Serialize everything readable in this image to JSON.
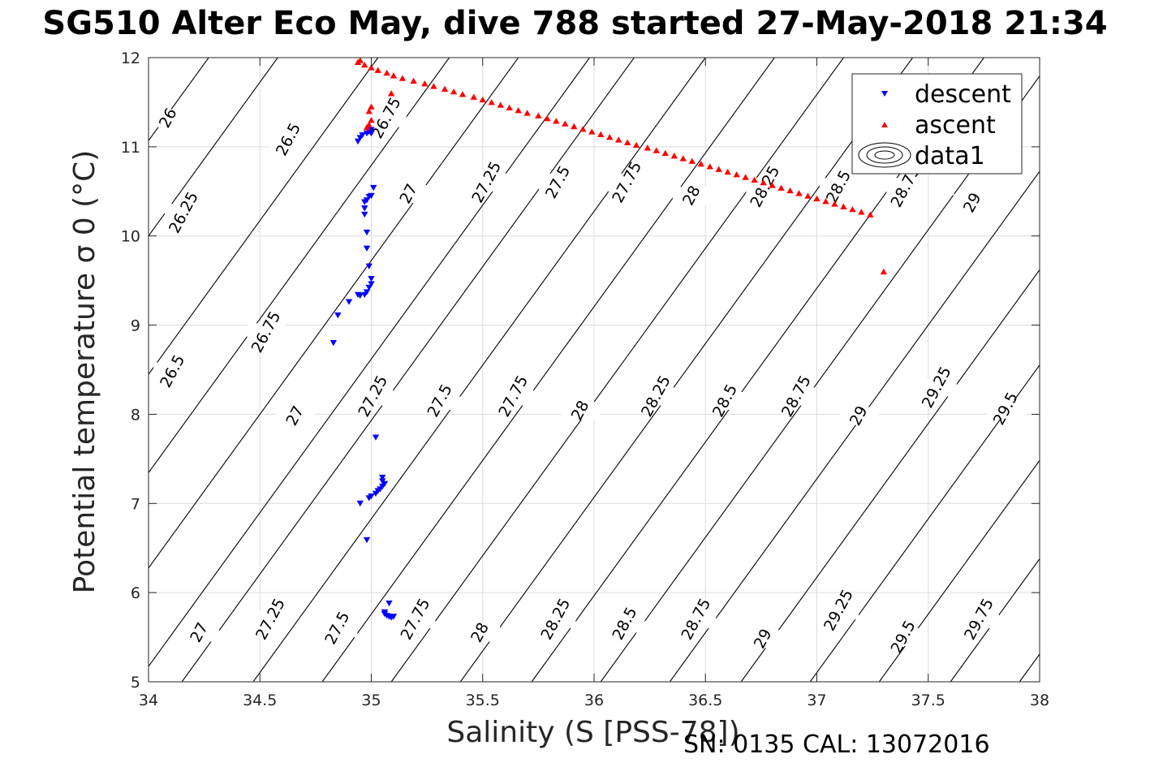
{
  "chart_data": {
    "type": "scatter",
    "title": "SG510 Alter Eco May, dive 788 started 27-May-2018 21:34",
    "xlabel": "Salinity (S [PSS-78])",
    "ylabel": "Potential temperature σ 0 (°C)",
    "xlim": [
      34,
      38
    ],
    "ylim": [
      5,
      12
    ],
    "xticks": [
      "34",
      "34.5",
      "35",
      "35.5",
      "36",
      "36.5",
      "37",
      "37.5",
      "38"
    ],
    "yticks": [
      "5",
      "6",
      "7",
      "8",
      "9",
      "10",
      "11",
      "12"
    ],
    "grid": true,
    "legend_position": "top-right",
    "series": [
      {
        "name": "descent",
        "marker": "triangle-down",
        "color": "#0000ff",
        "x": [
          34.94,
          34.95,
          34.96,
          34.98,
          34.99,
          35.0,
          35.0,
          34.97,
          34.98,
          34.99,
          35.0,
          35.01,
          34.97,
          34.97,
          34.98,
          34.98,
          34.99,
          35.0,
          35.0,
          34.99,
          34.98,
          34.97,
          34.95,
          34.94,
          34.9,
          34.85,
          34.83,
          35.02,
          35.05,
          35.05,
          35.06,
          35.05,
          35.04,
          35.03,
          35.02,
          35.0,
          34.99,
          34.95,
          34.98,
          35.08,
          35.06,
          35.06,
          35.07,
          35.08,
          35.09,
          35.1
        ],
        "y": [
          11.06,
          11.1,
          11.13,
          11.15,
          11.17,
          11.19,
          11.15,
          10.38,
          10.4,
          10.44,
          10.45,
          10.54,
          10.31,
          10.24,
          10.04,
          9.86,
          9.66,
          9.52,
          9.46,
          9.42,
          9.37,
          9.34,
          9.33,
          9.34,
          9.26,
          9.11,
          8.8,
          7.74,
          7.29,
          7.25,
          7.22,
          7.19,
          7.16,
          7.14,
          7.11,
          7.08,
          7.06,
          7.0,
          6.59,
          5.88,
          5.78,
          5.76,
          5.74,
          5.73,
          5.72,
          5.73
        ]
      },
      {
        "name": "ascent",
        "marker": "triangle-up",
        "color": "#ff0000",
        "x": [
          34.94,
          34.97,
          35.0,
          35.03,
          35.07,
          35.1,
          35.14,
          35.19,
          35.24,
          35.28,
          35.33,
          35.37,
          35.41,
          35.46,
          35.5,
          35.54,
          35.58,
          35.62,
          35.66,
          35.7,
          35.75,
          35.79,
          35.83,
          35.87,
          35.91,
          35.95,
          35.99,
          36.03,
          36.07,
          36.11,
          36.15,
          36.19,
          36.24,
          36.28,
          36.32,
          36.36,
          36.4,
          36.44,
          36.48,
          36.52,
          36.56,
          36.6,
          36.64,
          36.68,
          36.72,
          36.76,
          36.8,
          36.84,
          36.88,
          36.92,
          36.96,
          37.0,
          37.04,
          37.08,
          37.12,
          37.16,
          37.2,
          37.24,
          37.3,
          35.09,
          35.0,
          34.99,
          35.0,
          34.99,
          34.98,
          34.95
        ],
        "y": [
          11.95,
          11.92,
          11.89,
          11.86,
          11.83,
          11.8,
          11.77,
          11.74,
          11.71,
          11.68,
          11.65,
          11.62,
          11.59,
          11.56,
          11.53,
          11.5,
          11.47,
          11.44,
          11.41,
          11.38,
          11.35,
          11.32,
          11.29,
          11.26,
          11.23,
          11.2,
          11.17,
          11.14,
          11.11,
          11.08,
          11.05,
          11.02,
          10.99,
          10.96,
          10.93,
          10.9,
          10.87,
          10.84,
          10.81,
          10.78,
          10.75,
          10.72,
          10.69,
          10.66,
          10.63,
          10.6,
          10.57,
          10.54,
          10.51,
          10.48,
          10.45,
          10.42,
          10.39,
          10.36,
          10.33,
          10.3,
          10.27,
          10.24,
          9.6,
          11.6,
          11.45,
          11.4,
          11.3,
          11.25,
          11.22,
          11.97
        ]
      },
      {
        "name": "data1",
        "type": "contour",
        "color": "#000000",
        "levels": [
          26,
          26.25,
          26.5,
          26.75,
          27,
          27.25,
          27.5,
          27.75,
          28,
          28.25,
          28.5,
          28.75,
          29,
          29.25,
          29.5,
          29.75
        ],
        "labels": [
          {
            "text": "26",
            "x": 34.09,
            "y": 11.32
          },
          {
            "text": "26.5",
            "x": 34.63,
            "y": 11.08
          },
          {
            "text": "26.75",
            "x": 35.07,
            "y": 11.32
          },
          {
            "text": "26.25",
            "x": 34.16,
            "y": 10.26
          },
          {
            "text": "27",
            "x": 35.17,
            "y": 10.47
          },
          {
            "text": "27.25",
            "x": 35.52,
            "y": 10.6
          },
          {
            "text": "27.5",
            "x": 35.84,
            "y": 10.6
          },
          {
            "text": "27.75",
            "x": 36.15,
            "y": 10.6
          },
          {
            "text": "28",
            "x": 36.44,
            "y": 10.45
          },
          {
            "text": "28.25",
            "x": 36.77,
            "y": 10.55
          },
          {
            "text": "28.5",
            "x": 37.1,
            "y": 10.55
          },
          {
            "text": "28.75",
            "x": 37.4,
            "y": 10.55
          },
          {
            "text": "29",
            "x": 37.7,
            "y": 10.37
          },
          {
            "text": "26.75",
            "x": 34.53,
            "y": 8.92
          },
          {
            "text": "26.5",
            "x": 34.11,
            "y": 8.48
          },
          {
            "text": "27",
            "x": 34.66,
            "y": 7.98
          },
          {
            "text": "27.25",
            "x": 35.01,
            "y": 8.2
          },
          {
            "text": "27.5",
            "x": 35.31,
            "y": 8.15
          },
          {
            "text": "27.75",
            "x": 35.64,
            "y": 8.2
          },
          {
            "text": "28",
            "x": 35.94,
            "y": 8.04
          },
          {
            "text": "28.25",
            "x": 36.28,
            "y": 8.2
          },
          {
            "text": "28.5",
            "x": 36.59,
            "y": 8.15
          },
          {
            "text": "28.75",
            "x": 36.91,
            "y": 8.2
          },
          {
            "text": "29",
            "x": 37.19,
            "y": 7.98
          },
          {
            "text": "29.25",
            "x": 37.54,
            "y": 8.3
          },
          {
            "text": "29.5",
            "x": 37.85,
            "y": 8.06
          },
          {
            "text": "27",
            "x": 34.23,
            "y": 5.55
          },
          {
            "text": "27.25",
            "x": 34.55,
            "y": 5.7
          },
          {
            "text": "27.5",
            "x": 34.85,
            "y": 5.6
          },
          {
            "text": "27.75",
            "x": 35.2,
            "y": 5.7
          },
          {
            "text": "28",
            "x": 35.49,
            "y": 5.55
          },
          {
            "text": "28.25",
            "x": 35.83,
            "y": 5.7
          },
          {
            "text": "28.5",
            "x": 36.14,
            "y": 5.65
          },
          {
            "text": "28.75",
            "x": 36.46,
            "y": 5.7
          },
          {
            "text": "29",
            "x": 36.76,
            "y": 5.48
          },
          {
            "text": "29.25",
            "x": 37.1,
            "y": 5.8
          },
          {
            "text": "29.5",
            "x": 37.39,
            "y": 5.5
          },
          {
            "text": "29.75",
            "x": 37.73,
            "y": 5.7
          }
        ]
      }
    ],
    "annotations": [
      "SN: 0135  CAL: 13072016"
    ]
  }
}
